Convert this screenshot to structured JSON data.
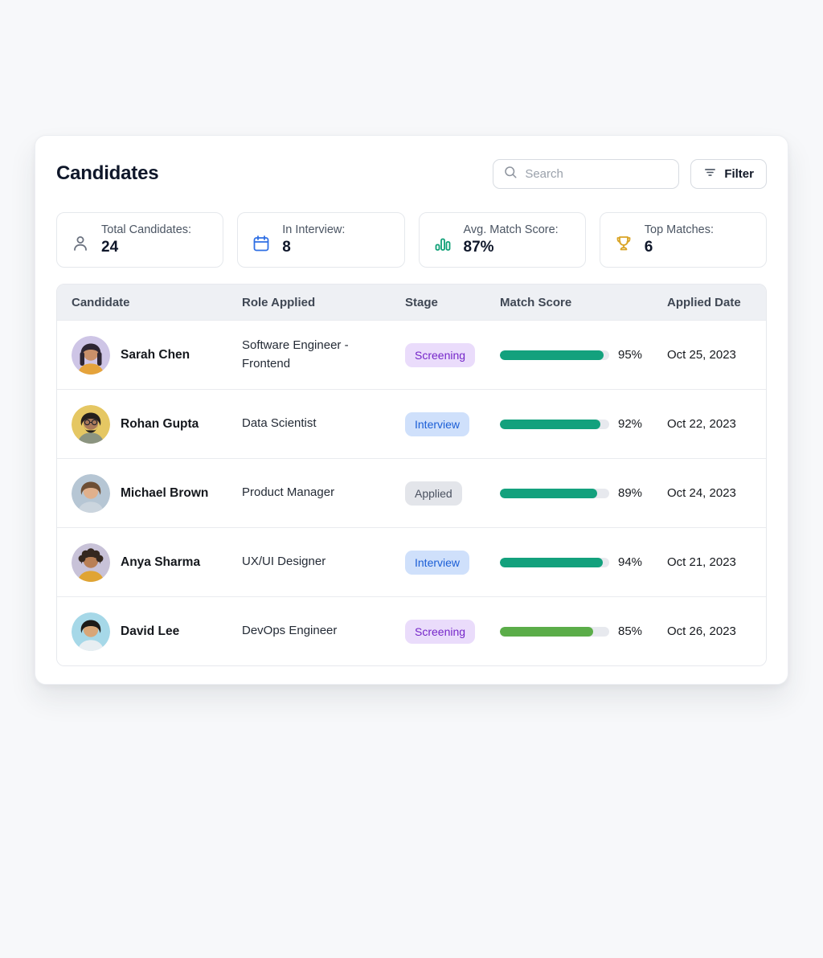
{
  "page": {
    "title": "Candidates"
  },
  "search": {
    "placeholder": "Search"
  },
  "filter": {
    "label": "Filter"
  },
  "stats": [
    {
      "icon": "user-icon",
      "label": "Total Candidates:",
      "value": "24",
      "color": "#6b7280"
    },
    {
      "icon": "calendar-icon",
      "label": "In Interview:",
      "value": "8",
      "color": "#2f6fe4"
    },
    {
      "icon": "bar-chart-icon",
      "label": "Avg. Match Score:",
      "value": "87%",
      "color": "#10a077"
    },
    {
      "icon": "trophy-icon",
      "label": "Top Matches:",
      "value": "6",
      "color": "#d9a425"
    }
  ],
  "table": {
    "columns": [
      "Candidate",
      "Role Applied",
      "Stage",
      "Match Score",
      "Applied Date"
    ],
    "stage_styles": {
      "Screening": {
        "bg": "#eadcfb",
        "text": "#7526c9"
      },
      "Interview": {
        "bg": "#cfe0fb",
        "text": "#1b5ed6"
      },
      "Applied": {
        "bg": "#e3e5ea",
        "text": "#4a5160"
      }
    },
    "progress_track_color": "#e7e9ee",
    "rows": [
      {
        "name": "Sarah Chen",
        "role": "Software Engineer - Frontend",
        "stage": "Screening",
        "match_pct": 95,
        "match_label": "95%",
        "applied_date": "Oct 25, 2023",
        "bar_color": "#13a17d",
        "avatar": {
          "variant": "long",
          "bg": "#cec5e6",
          "skin": "#c9906a",
          "hair": "#2e2633",
          "shirt": "#e5a33b"
        }
      },
      {
        "name": "Rohan Gupta",
        "role": "Data Scientist",
        "stage": "Interview",
        "match_pct": 92,
        "match_label": "92%",
        "applied_date": "Oct 22, 2023",
        "bar_color": "#13a17d",
        "avatar": {
          "variant": "beard",
          "bg": "#e5c763",
          "skin": "#a9795a",
          "hair": "#241f1c",
          "shirt": "#8b9480"
        }
      },
      {
        "name": "Michael Brown",
        "role": "Product Manager",
        "stage": "Applied",
        "match_pct": 89,
        "match_label": "89%",
        "applied_date": "Oct 24, 2023",
        "bar_color": "#13a17d",
        "avatar": {
          "variant": "short",
          "bg": "#b6c6d4",
          "skin": "#e0b08c",
          "hair": "#6e4f35",
          "shirt": "#cbd5de"
        }
      },
      {
        "name": "Anya Sharma",
        "role": "UX/UI Designer",
        "stage": "Interview",
        "match_pct": 94,
        "match_label": "94%",
        "applied_date": "Oct 21, 2023",
        "bar_color": "#13a17d",
        "avatar": {
          "variant": "curly",
          "bg": "#c8c2d8",
          "skin": "#b97f55",
          "hair": "#35281f",
          "shirt": "#e0a433"
        }
      },
      {
        "name": "David Lee",
        "role": "DevOps Engineer",
        "stage": "Screening",
        "match_pct": 85,
        "match_label": "85%",
        "applied_date": "Oct 26, 2023",
        "bar_color": "#5bad49",
        "avatar": {
          "variant": "short",
          "bg": "#a6d8e8",
          "skin": "#d8a678",
          "hair": "#1d1a18",
          "shirt": "#e8eef2"
        }
      }
    ]
  }
}
